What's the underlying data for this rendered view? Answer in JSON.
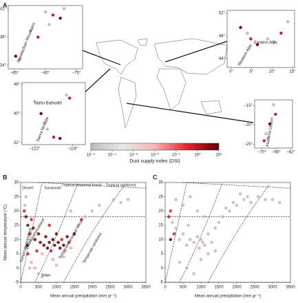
{
  "panels": {
    "a": "A",
    "b": "B",
    "c": "C"
  },
  "chart_data": [
    {
      "type": "inset",
      "xlim": [
        -86,
        -74
      ],
      "ylim": [
        33.5,
        42.5
      ],
      "xticks": [
        {
          "value": -85,
          "label": "−85°"
        },
        {
          "value": -80,
          "label": "−80°"
        },
        {
          "value": -75,
          "label": "−75°"
        }
      ],
      "yticks": [
        {
          "value": 42,
          "label": "42°"
        },
        {
          "value": 38,
          "label": "38°"
        },
        {
          "value": 34,
          "label": "34°"
        }
      ],
      "annotations": [
        "Appalachian Mountains"
      ]
    },
    {
      "type": "inset",
      "xlim": [
        -1,
        15.5
      ],
      "ylim": [
        42.5,
        52.5
      ],
      "xticks": [
        {
          "value": 0,
          "label": "0°"
        },
        {
          "value": 5,
          "label": "5°"
        },
        {
          "value": 10,
          "label": "10°"
        },
        {
          "value": 15,
          "label": "15°"
        }
      ],
      "yticks": [
        {
          "value": 52,
          "label": "52°"
        },
        {
          "value": 48,
          "label": "48°"
        },
        {
          "value": 44,
          "label": "44°"
        }
      ],
      "annotations": [
        "Western Alps",
        "Eastern Alps"
      ]
    },
    {
      "type": "inset",
      "xlim": [
        -124,
        -114
      ],
      "ylim": [
        31.5,
        48.5
      ],
      "xticks": [
        {
          "value": -122,
          "label": "−122°"
        },
        {
          "value": -116,
          "label": "−116°"
        }
      ],
      "yticks": [
        {
          "value": 48,
          "label": "48°"
        },
        {
          "value": 40,
          "label": "40°"
        },
        {
          "value": 32,
          "label": "32°"
        }
      ],
      "annotations": [
        "Idaho Batholith",
        "Sierra Nevada"
      ]
    },
    {
      "type": "inset",
      "xlim": [
        -72,
        -61.5
      ],
      "ylim": [
        -26,
        -13.5
      ],
      "xticks": [
        {
          "value": -70,
          "label": "−70°"
        },
        {
          "value": -66,
          "label": "−66°"
        },
        {
          "value": -62,
          "label": "−62°"
        }
      ],
      "yticks": [
        {
          "value": -15,
          "label": "−15°"
        },
        {
          "value": -20,
          "label": "−20°"
        },
        {
          "value": -25,
          "label": "−25°"
        }
      ],
      "annotations": [
        "Atacama Desert"
      ]
    },
    {
      "type": "colorbar",
      "title": "Dust supply index (DSI)",
      "log": true,
      "lim": [
        1e-05,
        10
      ],
      "colors": [
        "#bdbdbd",
        "#e8e8e8",
        "#f7b4b4",
        "#e3242b",
        "#5a0000"
      ],
      "ticks": [
        {
          "value": 1e-05,
          "label": "10⁻⁵"
        },
        {
          "value": 0.0001,
          "label": "10⁻⁴"
        },
        {
          "value": 0.001,
          "label": "10⁻³"
        },
        {
          "value": 0.01,
          "label": "10⁻²"
        },
        {
          "value": 0.1,
          "label": "10⁻¹"
        },
        {
          "value": 1,
          "label": "10⁰"
        },
        {
          "value": 10,
          "label": "10¹"
        }
      ]
    },
    {
      "type": "scatter",
      "xlabel": "Mean annual precipitation (mm yr⁻¹)",
      "ylabel": "Mean annual temperature (°C)",
      "xlim": [
        0,
        3500
      ],
      "ylim": [
        -5,
        30
      ],
      "xticks": [
        0,
        500,
        1000,
        1500,
        2000,
        2500,
        3000,
        3500
      ],
      "yticks": [
        -5,
        0,
        5,
        10,
        15,
        20,
        25,
        30
      ],
      "biomes": [
        "Desert",
        "Savannah",
        "Tropical seasonal forest",
        "Tropical rainforest",
        "Woodland/shrubland",
        "Temperate grassland",
        "Temperate seasonal forest",
        "Temperate rainforest",
        "Taiga"
      ],
      "x": [
        100,
        150,
        200,
        250,
        120,
        180,
        300,
        350,
        400,
        450,
        500,
        550,
        600,
        650,
        700,
        750,
        800,
        850,
        900,
        950,
        1000,
        1050,
        1100,
        1150,
        1200,
        1250,
        1300,
        1350,
        1400,
        1500,
        1600,
        1700,
        300,
        400,
        500,
        900,
        1200,
        1800,
        2000,
        2200,
        2600,
        2800,
        3000,
        200,
        600,
        1000,
        1400,
        150,
        250,
        800
      ],
      "y": [
        20,
        18,
        15,
        12,
        22,
        8,
        17,
        14,
        10,
        6,
        12,
        9,
        5,
        8,
        11,
        7,
        9,
        6,
        10,
        8,
        12,
        9,
        7,
        10,
        8,
        6,
        11,
        9,
        7,
        12,
        15,
        17,
        2,
        0,
        -2,
        3,
        4,
        18,
        20,
        22,
        24,
        23,
        24,
        5,
        -3,
        1,
        20,
        25,
        0,
        15
      ],
      "colors": [
        "#d7191c",
        "#7a0000",
        "#7a0000",
        "#d7191c",
        "#f4a6a6",
        "#7a0000",
        "#d7191c",
        "#7a0000",
        "#7a0000",
        "#d7191c",
        "#7a0000",
        "#7a0000",
        "#f4a6a6",
        "#7a0000",
        "#7a0000",
        "#5a0000",
        "#7a0000",
        "#d7191c",
        "#5a0000",
        "#7a0000",
        "#7a0000",
        "#5a0000",
        "#7a0000",
        "#d7191c",
        "#5a0000",
        "#f4a6a6",
        "#7a0000",
        "#d7191c",
        "#f4a6a6",
        "#7a0000",
        "#f4a6a6",
        "#d7191c",
        "#f4a6a6",
        "#f4a6a6",
        "#bbbbbb",
        "#f4a6a6",
        "#f4a6a6",
        "#bbbbbb",
        "#bbbbbb",
        "#bbbbbb",
        "#bbbbbb",
        "#bbbbbb",
        "#bbbbbb",
        "#d7191c",
        "#bbbbbb",
        "#f4a6a6",
        "#bbbbbb",
        "#bbbbbb",
        "#f4a6a6",
        "#d7191c"
      ]
    },
    {
      "type": "scatter",
      "xlabel": "Mean annual precipitation (mm yr⁻¹)",
      "ylabel": "",
      "xlim": [
        0,
        3500
      ],
      "ylim": [
        -5,
        30
      ],
      "xticks": [
        0,
        500,
        1000,
        1500,
        2000,
        2500,
        3000,
        3500
      ],
      "yticks": [
        -5,
        0,
        5,
        10,
        15,
        20,
        25,
        30
      ],
      "x": [
        100,
        150,
        200,
        300,
        400,
        500,
        600,
        700,
        800,
        900,
        1000,
        1100,
        1200,
        1300,
        1400,
        1500,
        1600,
        1800,
        2000,
        2200,
        2400,
        2600,
        2800,
        3000,
        3200,
        400,
        600,
        800,
        1000,
        1200,
        1400,
        300,
        500,
        700,
        900,
        1100,
        1700,
        1900,
        2100,
        2300,
        150,
        250,
        950,
        1050,
        650
      ],
      "y": [
        18,
        20,
        16,
        14,
        10,
        12,
        8,
        10,
        9,
        11,
        10,
        8,
        12,
        9,
        14,
        16,
        18,
        20,
        22,
        24,
        23,
        25,
        24,
        24,
        23,
        2,
        0,
        -2,
        3,
        5,
        6,
        24,
        22,
        25,
        20,
        18,
        21,
        23,
        26,
        25,
        10,
        12,
        7,
        9,
        15
      ],
      "colors": [
        "#d7191c",
        "#e3242b",
        "#bbbbbb",
        "#bbbbbb",
        "#bbbbbb",
        "#bbbbbb",
        "#bbbbbb",
        "#bbbbbb",
        "#bbbbbb",
        "#bbbbbb",
        "#bbbbbb",
        "#bbbbbb",
        "#bbbbbb",
        "#bbbbbb",
        "#bbbbbb",
        "#bbbbbb",
        "#bbbbbb",
        "#bbbbbb",
        "#bbbbbb",
        "#bbbbbb",
        "#bbbbbb",
        "#bbbbbb",
        "#bbbbbb",
        "#bbbbbb",
        "#bbbbbb",
        "#bbbbbb",
        "#bbbbbb",
        "#bbbbbb",
        "#bbbbbb",
        "#bbbbbb",
        "#bbbbbb",
        "#bbbbbb",
        "#bbbbbb",
        "#bbbbbb",
        "#bbbbbb",
        "#bbbbbb",
        "#bbbbbb",
        "#bbbbbb",
        "#bbbbbb",
        "#bbbbbb",
        "#7a0000",
        "#d7191c",
        "#f4a6a6",
        "#f4a6a6",
        "#bbbbbb"
      ]
    }
  ]
}
